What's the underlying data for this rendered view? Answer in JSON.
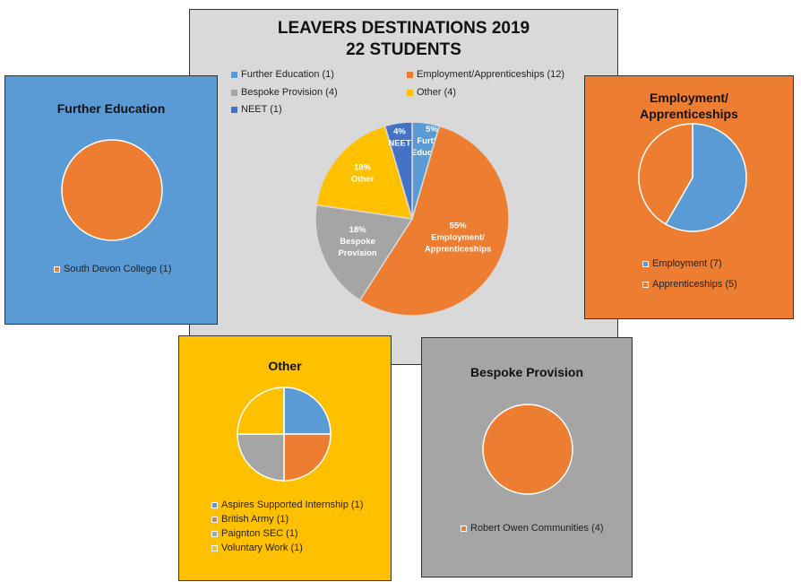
{
  "colors": {
    "further_education": "#5B9BD5",
    "employment": "#ED7D31",
    "bespoke": "#A5A5A5",
    "other": "#FFC000",
    "neet": "#4472C4"
  },
  "chart_data": [
    {
      "id": "main",
      "type": "pie",
      "title": "LEAVERS DESTINATIONS 2019",
      "subtitle": "22 STUDENTS",
      "legend_placement": "top",
      "slices": [
        {
          "legend": "Further Education (1)",
          "value": 1,
          "percent": "5%",
          "label": "Further Education",
          "color": "#5B9BD5"
        },
        {
          "legend": "Employment/Apprenticeships (12)",
          "value": 12,
          "percent": "55%",
          "label": "Employment/ Apprenticeships",
          "color": "#ED7D31"
        },
        {
          "legend": "Bespoke Provision (4)",
          "value": 4,
          "percent": "18%",
          "label": "Bespoke Provision",
          "color": "#A5A5A5"
        },
        {
          "legend": "Other (4)",
          "value": 4,
          "percent": "18%",
          "label": "Other",
          "color": "#FFC000"
        },
        {
          "legend": "NEET (1)",
          "value": 1,
          "percent": "4%",
          "label": "NEET",
          "color": "#4472C4"
        }
      ]
    },
    {
      "id": "further",
      "type": "pie",
      "title": "Further Education",
      "slices": [
        {
          "legend": "South Devon College (1)",
          "value": 1,
          "color": "#ED7D31"
        }
      ]
    },
    {
      "id": "employment",
      "type": "pie",
      "title": "Employment/ Apprenticeships",
      "slices": [
        {
          "legend": "Employment (7)",
          "value": 7,
          "color": "#5B9BD5"
        },
        {
          "legend": "Apprenticeships (5)",
          "value": 5,
          "color": "#ED7D31"
        }
      ]
    },
    {
      "id": "other",
      "type": "pie",
      "title": "Other",
      "slices": [
        {
          "legend": "Aspires Supported Internship (1)",
          "value": 1,
          "color": "#5B9BD5"
        },
        {
          "legend": "British Army (1)",
          "value": 1,
          "color": "#ED7D31"
        },
        {
          "legend": "Paignton SEC (1)",
          "value": 1,
          "color": "#A5A5A5"
        },
        {
          "legend": "Voluntary Work (1)",
          "value": 1,
          "color": "#FFC000"
        }
      ]
    },
    {
      "id": "bespoke",
      "type": "pie",
      "title": "Bespoke Provision",
      "slices": [
        {
          "legend": "Robert Owen Communities (4)",
          "value": 4,
          "color": "#ED7D31"
        }
      ]
    }
  ]
}
